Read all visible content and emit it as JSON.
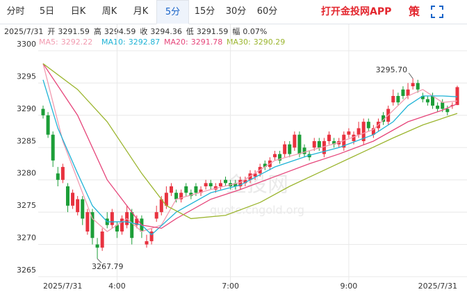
{
  "tabs": [
    "分时",
    "5日",
    "日K",
    "周K",
    "月K",
    "5分",
    "15分",
    "30分",
    "60分"
  ],
  "active_tab": "5分",
  "app_link": "打开金投网APP",
  "strategy": "策",
  "chart_data": {
    "type": "candlestick",
    "date": "2025/7/31",
    "info": [
      {
        "label": "开",
        "value": 3291.59
      },
      {
        "label": "高",
        "value": 3294.59
      },
      {
        "label": "收",
        "value": 3294.36
      },
      {
        "label": "低",
        "value": 3291.59
      },
      {
        "label": "幅",
        "text": "0.07%"
      }
    ],
    "categories": [
      "2025/7/31",
      null,
      null,
      null,
      null,
      null,
      null,
      null,
      null,
      null,
      null,
      null,
      null,
      null,
      null,
      "4:00",
      null,
      null,
      null,
      null,
      null,
      null,
      null,
      null,
      null,
      null,
      null,
      null,
      null,
      null,
      null,
      null,
      null,
      null,
      null,
      null,
      null,
      null,
      "7:00",
      null,
      null,
      null,
      null,
      null,
      null,
      null,
      null,
      null,
      null,
      null,
      null,
      null,
      null,
      null,
      null,
      null,
      null,
      null,
      null,
      null,
      null,
      null,
      "9:00",
      null,
      null,
      null,
      null,
      null,
      null,
      null,
      null,
      null,
      null,
      null,
      null,
      null,
      null,
      null,
      null,
      null,
      null,
      null,
      null,
      null,
      "2025/7/31"
    ],
    "ohlc": [
      [
        3291,
        3291.5,
        3289.5,
        3290
      ],
      [
        3290,
        3290.5,
        3286.5,
        3287
      ],
      [
        3287,
        3287.5,
        3282,
        3283
      ],
      [
        3281,
        3282,
        3279,
        3280
      ],
      [
        3280,
        3282.5,
        3279.5,
        3282
      ],
      [
        3279,
        3279.5,
        3275,
        3276
      ],
      [
        3276,
        3278.5,
        3275.5,
        3278
      ],
      [
        3275,
        3277.5,
        3274.5,
        3277
      ],
      [
        3277,
        3277.5,
        3273,
        3274
      ],
      [
        3272,
        3275.5,
        3271.5,
        3275
      ],
      [
        3275,
        3275.5,
        3270,
        3271
      ],
      [
        3270,
        3271,
        3267.79,
        3269.5
      ],
      [
        3269.5,
        3272.5,
        3269,
        3272
      ],
      [
        3274,
        3275,
        3272.5,
        3273
      ],
      [
        3273,
        3275.5,
        3272.5,
        3275
      ],
      [
        3273,
        3273.5,
        3271,
        3272
      ],
      [
        3272,
        3274.5,
        3271.5,
        3274
      ],
      [
        3273,
        3276,
        3272.5,
        3275
      ],
      [
        3275,
        3275.5,
        3270,
        3271
      ],
      [
        3273,
        3274.5,
        3272.5,
        3274
      ],
      [
        3274,
        3274.5,
        3271,
        3272
      ],
      [
        3270,
        3271.5,
        3269.5,
        3270.5
      ],
      [
        3270.5,
        3272.5,
        3270,
        3272
      ],
      [
        3274,
        3276,
        3273.5,
        3275
      ],
      [
        3275,
        3277.5,
        3274.5,
        3277
      ],
      [
        3276,
        3279,
        3275.5,
        3278
      ],
      [
        3278,
        3279.5,
        3277.5,
        3279
      ],
      [
        3278,
        3278.5,
        3276.5,
        3277
      ],
      [
        3277,
        3278.5,
        3276.5,
        3278
      ],
      [
        3279,
        3279.5,
        3277.5,
        3278
      ],
      [
        3278,
        3278.5,
        3277,
        3277.5
      ],
      [
        3279,
        3279.5,
        3277.5,
        3278
      ],
      [
        3278,
        3279,
        3277.5,
        3278.5
      ],
      [
        3279,
        3280,
        3278.5,
        3279.5
      ],
      [
        3279.5,
        3280,
        3278.5,
        3279
      ],
      [
        3278.5,
        3279.5,
        3278,
        3279
      ],
      [
        3279,
        3280,
        3278.5,
        3279.5
      ],
      [
        3280,
        3280.5,
        3279,
        3279.5
      ],
      [
        3279.5,
        3280,
        3278.5,
        3279
      ],
      [
        3279.5,
        3280,
        3278.5,
        3279
      ],
      [
        3279,
        3280.5,
        3278.5,
        3280
      ],
      [
        3279.5,
        3280.5,
        3279,
        3280
      ],
      [
        3280,
        3281.5,
        3279.5,
        3281
      ],
      [
        3280.5,
        3281.5,
        3280,
        3281
      ],
      [
        3281,
        3282.5,
        3280.5,
        3282
      ],
      [
        3282.5,
        3283,
        3281.5,
        3282
      ],
      [
        3282,
        3283.5,
        3281.5,
        3283
      ],
      [
        3283.5,
        3284.5,
        3283,
        3284
      ],
      [
        3284,
        3284.5,
        3282.5,
        3283
      ],
      [
        3284,
        3286,
        3283.5,
        3285.5
      ],
      [
        3285.5,
        3286,
        3283.5,
        3284
      ],
      [
        3285,
        3287.5,
        3284.5,
        3287
      ],
      [
        3287,
        3287.5,
        3283.5,
        3284
      ],
      [
        3285,
        3285.5,
        3283.5,
        3284
      ],
      [
        3284,
        3284.5,
        3283,
        3283.5
      ],
      [
        3285,
        3286.5,
        3284.5,
        3286
      ],
      [
        3286,
        3286.5,
        3284.5,
        3285
      ],
      [
        3284,
        3286.5,
        3283.5,
        3286
      ],
      [
        3286,
        3287.5,
        3285.5,
        3287
      ],
      [
        3286,
        3286.5,
        3285,
        3285.5
      ],
      [
        3285.5,
        3286.5,
        3285,
        3286
      ],
      [
        3285,
        3287.5,
        3284.5,
        3287
      ],
      [
        3287,
        3288,
        3286.5,
        3287.5
      ],
      [
        3286,
        3287.5,
        3285.5,
        3287
      ],
      [
        3287,
        3289,
        3286.5,
        3288
      ],
      [
        3286,
        3289.5,
        3285.5,
        3289
      ],
      [
        3289,
        3289.5,
        3287.5,
        3288
      ],
      [
        3287,
        3288.5,
        3286.5,
        3288
      ],
      [
        3288,
        3289.5,
        3287.5,
        3289
      ],
      [
        3290,
        3290.5,
        3288.5,
        3289
      ],
      [
        3289,
        3291.5,
        3288.5,
        3291
      ],
      [
        3292,
        3294,
        3291.5,
        3293
      ],
      [
        3293,
        3293.5,
        3291.5,
        3292
      ],
      [
        3294,
        3294.5,
        3292.5,
        3293
      ],
      [
        3293,
        3295,
        3292.5,
        3294
      ],
      [
        3294.5,
        3295.7,
        3294,
        3295
      ],
      [
        3295,
        3295.5,
        3293.5,
        3294
      ],
      [
        3293,
        3293.5,
        3292,
        3292.5
      ],
      [
        3292.5,
        3293,
        3291.5,
        3292
      ],
      [
        3293,
        3293.5,
        3291,
        3291.5
      ],
      [
        3291.5,
        3292,
        3290.5,
        3291
      ],
      [
        3292,
        3292.5,
        3290.5,
        3291
      ],
      [
        3291,
        3291.5,
        3290,
        3290.5
      ],
      [
        3291.5,
        3292,
        3291,
        3291.59
      ],
      [
        3291.59,
        3294.59,
        3291.59,
        3294.36
      ]
    ],
    "up_color": "#e8323f",
    "down_color": "#1c9e38",
    "series": [
      {
        "name": "MA5:",
        "last": 3292.22,
        "color": "#f29bb0",
        "x": [
          0,
          2,
          4,
          7,
          10,
          13,
          17,
          20,
          24,
          27,
          34,
          40,
          47,
          54,
          60,
          67,
          74,
          77,
          81,
          84
        ],
        "values": [
          3298,
          3292,
          3286,
          3280,
          3274,
          3272,
          3274,
          3272,
          3273,
          3277,
          3278.5,
          3279.6,
          3283,
          3284.5,
          3285.8,
          3287.8,
          3293,
          3294,
          3292,
          3292.22
        ]
      },
      {
        "name": "MA10:",
        "last": 3292.87,
        "color": "#1fb3d6",
        "x": [
          0,
          3,
          7,
          10,
          13,
          17,
          20,
          22,
          27,
          34,
          40,
          47,
          54,
          60,
          67,
          71,
          74,
          77,
          81,
          84
        ],
        "values": [
          3295.5,
          3288,
          3281,
          3276,
          3273.5,
          3273.5,
          3273,
          3271.5,
          3275,
          3278,
          3279.2,
          3282,
          3283.8,
          3285,
          3287,
          3289,
          3291.5,
          3293,
          3293,
          3292.87
        ]
      },
      {
        "name": "MA20:",
        "last": 3291.78,
        "color": "#e6457a",
        "x": [
          0,
          7,
          13,
          17,
          20,
          24,
          27,
          34,
          40,
          47,
          54,
          60,
          67,
          74,
          81,
          84
        ],
        "values": [
          3298,
          3290,
          3280,
          3276,
          3273,
          3272.5,
          3274,
          3277,
          3278.5,
          3280.5,
          3282.5,
          3284,
          3286,
          3289,
          3290.8,
          3291.78
        ]
      },
      {
        "name": "MA30:",
        "last": 3290.29,
        "color": "#9bb52e",
        "x": [
          0,
          7,
          13,
          20,
          25,
          30,
          37,
          44,
          50,
          57,
          64,
          71,
          77,
          84
        ],
        "values": [
          3298,
          3294,
          3289,
          3281,
          3276,
          3274,
          3274.5,
          3276.5,
          3279,
          3281.5,
          3284,
          3286.5,
          3288.5,
          3290.29
        ]
      }
    ],
    "ylim": [
      3265,
      3300
    ],
    "yticks": [
      3265,
      3270,
      3275,
      3280,
      3285,
      3290,
      3295,
      3300
    ],
    "grid": true,
    "max_label": {
      "value": 3295.7,
      "label": "3295.70"
    },
    "min_label": {
      "value": 3267.79
    },
    "watermark": [
      "金投网",
      "quote.cngold.org"
    ]
  }
}
